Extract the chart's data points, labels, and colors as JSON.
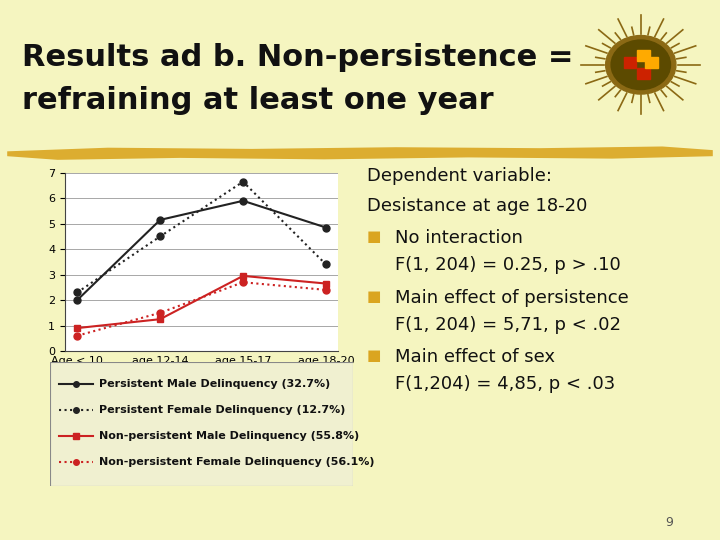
{
  "title_line1": "Results ad b. Non-persistence =",
  "title_line2": "refraining at least one year",
  "bg_color": "#F5F5C0",
  "chart_bg": "#ffffff",
  "legend_bg": "#F0F0D0",
  "categories": [
    "Age < 10",
    "age 12-14",
    "age 15-17",
    "age 18-20"
  ],
  "series": [
    {
      "label": "Persistent Male Delinquency (32.7%)",
      "values": [
        2.0,
        5.15,
        5.9,
        4.85
      ],
      "color": "#222222",
      "linestyle": "-",
      "marker": "o",
      "markersize": 5,
      "linewidth": 1.5,
      "markerfacecolor": "#222222"
    },
    {
      "label": "Persistent Female Delinquency (12.7%)",
      "values": [
        2.3,
        4.5,
        6.65,
        3.4
      ],
      "color": "#222222",
      "linestyle": ":",
      "marker": "o",
      "markersize": 5,
      "linewidth": 1.5,
      "markerfacecolor": "#222222"
    },
    {
      "label": "Non-persistent Male Delinquency (55.8%)",
      "values": [
        0.9,
        1.25,
        2.95,
        2.65
      ],
      "color": "#cc2222",
      "linestyle": "-",
      "marker": "s",
      "markersize": 5,
      "linewidth": 1.5,
      "markerfacecolor": "#cc2222"
    },
    {
      "label": "Non-persistent Female Delinquency (56.1%)",
      "values": [
        0.6,
        1.5,
        2.7,
        2.4
      ],
      "color": "#cc2222",
      "linestyle": ":",
      "marker": "o",
      "markersize": 5,
      "linewidth": 1.5,
      "markerfacecolor": "#cc2222"
    }
  ],
  "ylim": [
    0,
    7
  ],
  "yticks": [
    0,
    1,
    2,
    3,
    4,
    5,
    6,
    7
  ],
  "annotation_lines": [
    {
      "text": "Dependent variable:",
      "indent": false,
      "bullet": false
    },
    {
      "text": "Desistance at age 18-20",
      "indent": false,
      "bullet": false
    },
    {
      "text": "No interaction",
      "indent": false,
      "bullet": true
    },
    {
      "text": "F(1, 204) = 0.25, p > .10",
      "indent": true,
      "bullet": false
    },
    {
      "text": "Main effect of persistence",
      "indent": false,
      "bullet": true
    },
    {
      "text": "F(1, 204) = 5,71, p < .02",
      "indent": true,
      "bullet": false
    },
    {
      "text": "Main effect of sex",
      "indent": false,
      "bullet": true
    },
    {
      "text": "F(1,204) = 4,85, p < .03",
      "indent": true,
      "bullet": false
    }
  ],
  "bullet_color": "#DAA520",
  "title_fontsize": 22,
  "axis_fontsize": 8,
  "legend_fontsize": 8,
  "annotation_fontsize": 13,
  "footer_text": "9",
  "gold_line_color": "#DAA520",
  "sun_color": "#B8860B"
}
